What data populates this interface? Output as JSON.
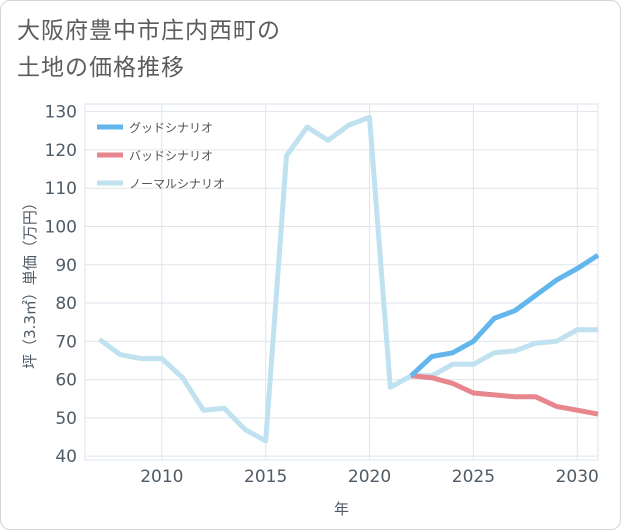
{
  "title": {
    "line1": "大阪府豊中市庄内西町の",
    "line2": "土地の価格推移"
  },
  "chart_data": {
    "type": "line",
    "xlabel": "年",
    "ylabel": "坪（3.3㎡）単価（万円）",
    "xlim": [
      2006.3,
      2031
    ],
    "ylim": [
      39,
      132
    ],
    "xticks": [
      2010,
      2015,
      2020,
      2025,
      2030
    ],
    "yticks": [
      40,
      50,
      60,
      70,
      80,
      90,
      100,
      110,
      120,
      130
    ],
    "grid": true,
    "legend_position": "top-left",
    "series": [
      {
        "name": "ノーマルシナリオ",
        "color": "#c0e1ef",
        "x": [
          2007,
          2008,
          2009,
          2010,
          2011,
          2012,
          2013,
          2014,
          2015,
          2016,
          2017,
          2018,
          2019,
          2020,
          2021,
          2022,
          2023,
          2024,
          2025,
          2026,
          2027,
          2028,
          2029,
          2030,
          2031
        ],
        "y": [
          70.5,
          66.5,
          65.5,
          65.5,
          60.5,
          52,
          52.5,
          47,
          44,
          118.5,
          126,
          122.5,
          126.5,
          128.5,
          58,
          61,
          61,
          64,
          64,
          67,
          67.5,
          69.5,
          70,
          73,
          73
        ]
      },
      {
        "name": "バッドシナリオ",
        "color": "#e8868e",
        "x": [
          2022,
          2023,
          2024,
          2025,
          2026,
          2027,
          2028,
          2029,
          2030,
          2031
        ],
        "y": [
          61,
          60.5,
          59,
          56.5,
          56,
          55.5,
          55.5,
          53,
          52,
          51
        ]
      },
      {
        "name": "グッドシナリオ",
        "color": "#63b6ec",
        "x": [
          2022,
          2023,
          2024,
          2025,
          2026,
          2027,
          2028,
          2029,
          2030,
          2031
        ],
        "y": [
          61,
          66,
          67,
          70,
          76,
          78,
          82,
          86,
          89,
          92.5
        ]
      }
    ],
    "legend_order": [
      "グッドシナリオ",
      "バッドシナリオ",
      "ノーマルシナリオ"
    ]
  }
}
